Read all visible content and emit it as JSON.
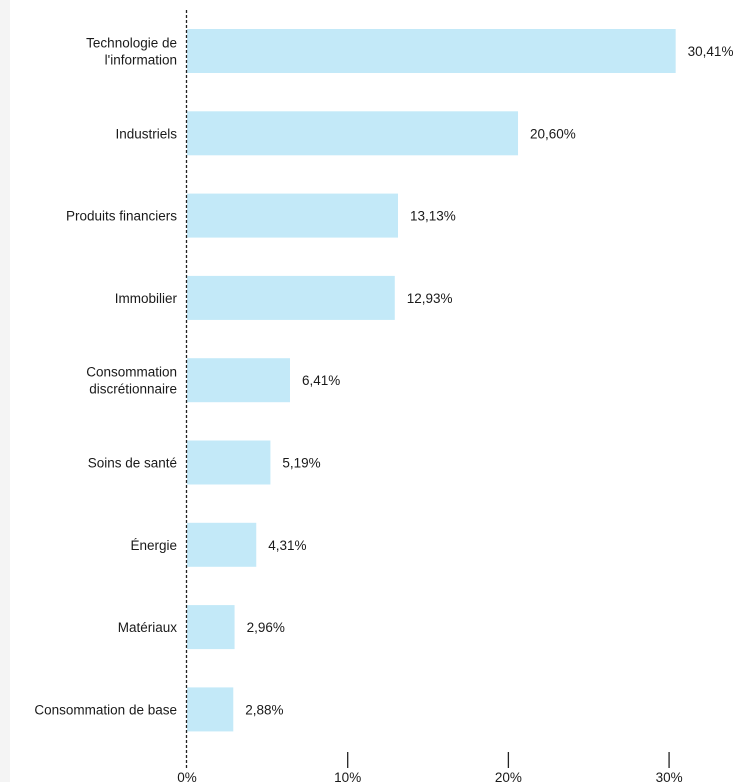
{
  "chart_data": {
    "type": "bar",
    "orientation": "horizontal",
    "categories": [
      [
        "Technologie de",
        "l'information"
      ],
      [
        "Industriels"
      ],
      [
        "Produits financiers"
      ],
      [
        "Immobilier"
      ],
      [
        "Consommation",
        "discrétionnaire"
      ],
      [
        "Soins de santé"
      ],
      [
        "Énergie"
      ],
      [
        "Matériaux"
      ],
      [
        "Consommation de base"
      ]
    ],
    "values": [
      30.41,
      20.6,
      13.13,
      12.93,
      6.41,
      5.19,
      4.31,
      2.96,
      2.88
    ],
    "value_labels": [
      "30,41%",
      "20,60%",
      "13,13%",
      "12,93%",
      "6,41%",
      "5,19%",
      "4,31%",
      "2,96%",
      "2,88%"
    ],
    "x_ticks": [
      {
        "value": 0,
        "label": "0%"
      },
      {
        "value": 10,
        "label": "10%"
      },
      {
        "value": 20,
        "label": "20%"
      },
      {
        "value": 30,
        "label": "30%"
      }
    ],
    "xlim": [
      0,
      34.6
    ],
    "bar_color": "#c3e9f8",
    "axis_color": "#222222",
    "grid": false,
    "title": "",
    "xlabel": "",
    "ylabel": ""
  }
}
